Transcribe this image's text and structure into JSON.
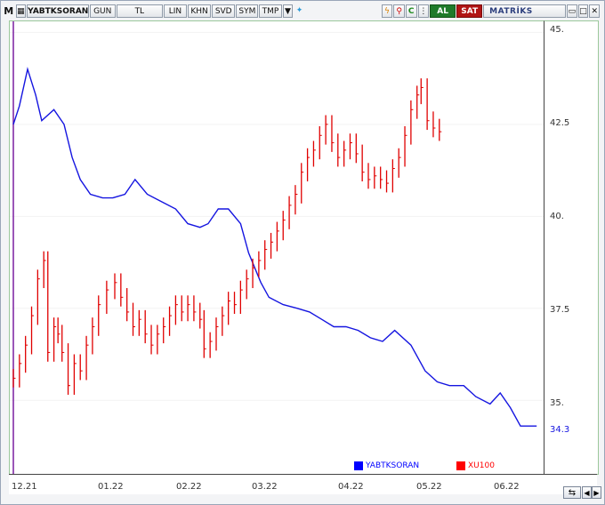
{
  "toolbar": {
    "m_label": "M",
    "symbol": "YABTKSORAN",
    "period": "GUN",
    "currency": "TL",
    "lin": "LIN",
    "khn": "KHN",
    "svd": "SVD",
    "sym": "SYM",
    "tmp": "TMP",
    "al": "AL",
    "sat": "SAT",
    "brand": "MATRİKS"
  },
  "yaxis": {
    "labels": [
      "45.",
      "42.5",
      "40.",
      "37.5",
      "35."
    ],
    "last_value": "34.3"
  },
  "xaxis": {
    "labels": [
      "12.21",
      "01.22",
      "02.22",
      "03.22",
      "04.22",
      "05.22",
      "06.22"
    ]
  },
  "legend": [
    {
      "name": "YABTKSORAN",
      "color": "#0000ff"
    },
    {
      "name": "XU100",
      "color": "#ff0000"
    }
  ],
  "colors": {
    "blue_series": "#1515e0",
    "red_series": "#e00000",
    "cursor_line": "#7a1fa0"
  },
  "chart_data": {
    "type": "line",
    "ylim": [
      33.0,
      45.3
    ],
    "x_range": [
      "12.21",
      "06.22"
    ],
    "series": [
      {
        "name": "YABTKSORAN",
        "values": [
          [
            0,
            42.5
          ],
          [
            3,
            43.0
          ],
          [
            7,
            44.0
          ],
          [
            11,
            43.3
          ],
          [
            14,
            42.6
          ],
          [
            20,
            42.9
          ],
          [
            25,
            42.5
          ],
          [
            29,
            41.6
          ],
          [
            33,
            41.0
          ],
          [
            38,
            40.6
          ],
          [
            44,
            40.5
          ],
          [
            49,
            40.5
          ],
          [
            55,
            40.6
          ],
          [
            60,
            41.0
          ],
          [
            66,
            40.6
          ],
          [
            73,
            40.4
          ],
          [
            80,
            40.2
          ],
          [
            86,
            39.8
          ],
          [
            92,
            39.7
          ],
          [
            96,
            39.8
          ],
          [
            101,
            40.2
          ],
          [
            106,
            40.2
          ],
          [
            112,
            39.8
          ],
          [
            116,
            39.0
          ],
          [
            122,
            38.2
          ],
          [
            126,
            37.8
          ],
          [
            133,
            37.6
          ],
          [
            140,
            37.5
          ],
          [
            146,
            37.4
          ],
          [
            152,
            37.2
          ],
          [
            158,
            37.0
          ],
          [
            164,
            37.0
          ],
          [
            170,
            36.9
          ],
          [
            176,
            36.7
          ],
          [
            182,
            36.6
          ],
          [
            188,
            36.9
          ],
          [
            196,
            36.5
          ],
          [
            203,
            35.8
          ],
          [
            209,
            35.5
          ],
          [
            215,
            35.4
          ],
          [
            222,
            35.4
          ],
          [
            228,
            35.1
          ],
          [
            235,
            34.9
          ],
          [
            240,
            35.2
          ],
          [
            245,
            34.8
          ],
          [
            250,
            34.3
          ],
          [
            258,
            34.3
          ]
        ]
      },
      {
        "name": "XU100",
        "values": [
          [
            0,
            35.6
          ],
          [
            3,
            36.0
          ],
          [
            6,
            36.5
          ],
          [
            9,
            37.3
          ],
          [
            12,
            38.3
          ],
          [
            15,
            38.8
          ],
          [
            17,
            36.3
          ],
          [
            20,
            37.0
          ],
          [
            22,
            36.8
          ],
          [
            24,
            36.3
          ],
          [
            27,
            35.4
          ],
          [
            30,
            36.0
          ],
          [
            33,
            35.8
          ],
          [
            36,
            36.5
          ],
          [
            39,
            37.0
          ],
          [
            42,
            37.6
          ],
          [
            46,
            38.0
          ],
          [
            50,
            38.2
          ],
          [
            53,
            37.8
          ],
          [
            56,
            37.4
          ],
          [
            59,
            37.0
          ],
          [
            62,
            37.2
          ],
          [
            65,
            36.8
          ],
          [
            68,
            36.5
          ],
          [
            71,
            36.8
          ],
          [
            74,
            37.0
          ],
          [
            77,
            37.3
          ],
          [
            80,
            37.6
          ],
          [
            83,
            37.4
          ],
          [
            86,
            37.6
          ],
          [
            89,
            37.4
          ],
          [
            92,
            37.2
          ],
          [
            94,
            36.4
          ],
          [
            97,
            36.6
          ],
          [
            100,
            37.0
          ],
          [
            103,
            37.3
          ],
          [
            106,
            37.7
          ],
          [
            109,
            37.6
          ],
          [
            112,
            38.0
          ],
          [
            115,
            38.3
          ],
          [
            118,
            38.6
          ],
          [
            121,
            38.8
          ],
          [
            124,
            39.1
          ],
          [
            127,
            39.3
          ],
          [
            130,
            39.6
          ],
          [
            133,
            39.9
          ],
          [
            136,
            40.3
          ],
          [
            139,
            40.6
          ],
          [
            142,
            41.2
          ],
          [
            145,
            41.6
          ],
          [
            148,
            41.8
          ],
          [
            151,
            42.2
          ],
          [
            154,
            42.5
          ],
          [
            157,
            42.0
          ],
          [
            160,
            41.6
          ],
          [
            163,
            41.8
          ],
          [
            166,
            42.0
          ],
          [
            169,
            41.7
          ],
          [
            172,
            41.2
          ],
          [
            175,
            41.0
          ],
          [
            178,
            41.1
          ],
          [
            181,
            41.0
          ],
          [
            184,
            40.9
          ],
          [
            187,
            41.3
          ],
          [
            190,
            41.6
          ],
          [
            193,
            42.2
          ],
          [
            196,
            42.9
          ],
          [
            199,
            43.3
          ],
          [
            201,
            43.5
          ],
          [
            204,
            42.6
          ],
          [
            207,
            42.4
          ],
          [
            210,
            42.3
          ]
        ]
      }
    ]
  }
}
